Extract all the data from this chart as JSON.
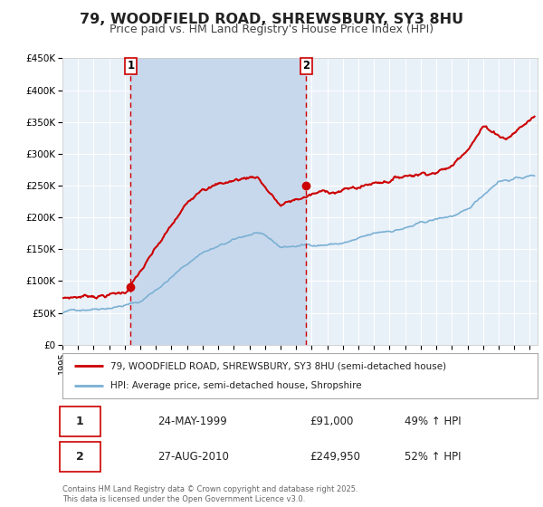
{
  "title": "79, WOODFIELD ROAD, SHREWSBURY, SY3 8HU",
  "subtitle": "Price paid vs. HM Land Registry's House Price Index (HPI)",
  "legend_line1": "79, WOODFIELD ROAD, SHREWSBURY, SY3 8HU (semi-detached house)",
  "legend_line2": "HPI: Average price, semi-detached house, Shropshire",
  "annotation1_date": "24-MAY-1999",
  "annotation1_price": "£91,000",
  "annotation1_hpi": "49% ↑ HPI",
  "annotation2_date": "27-AUG-2010",
  "annotation2_price": "£249,950",
  "annotation2_hpi": "52% ↑ HPI",
  "sale1_year": 1999.38,
  "sale1_value": 91000,
  "sale2_year": 2010.65,
  "sale2_value": 249950,
  "xmin": 1995,
  "xmax": 2025.5,
  "ymin": 0,
  "ymax": 450000,
  "yticks": [
    0,
    50000,
    100000,
    150000,
    200000,
    250000,
    300000,
    350000,
    400000,
    450000
  ],
  "ytick_labels": [
    "£0",
    "£50K",
    "£100K",
    "£150K",
    "£200K",
    "£250K",
    "£300K",
    "£350K",
    "£400K",
    "£450K"
  ],
  "xtick_years": [
    1995,
    1996,
    1997,
    1998,
    1999,
    2000,
    2001,
    2002,
    2003,
    2004,
    2005,
    2006,
    2007,
    2008,
    2009,
    2010,
    2011,
    2012,
    2013,
    2014,
    2015,
    2016,
    2017,
    2018,
    2019,
    2020,
    2021,
    2022,
    2023,
    2024,
    2025
  ],
  "vline1_x": 1999.38,
  "vline2_x": 2010.65,
  "shade_xmin": 1999.38,
  "shade_xmax": 2010.65,
  "fig_bg_color": "#ffffff",
  "plot_bg_color": "#e8f0f8",
  "shade_color": "#c8d8ec",
  "grid_color": "#ffffff",
  "hpi_line_color": "#7ab0d4",
  "price_line_color": "#cc0000",
  "vline_color": "#cc0000",
  "footer_text": "Contains HM Land Registry data © Crown copyright and database right 2025.\nThis data is licensed under the Open Government Licence v3.0.",
  "title_fontsize": 11.5,
  "subtitle_fontsize": 9
}
